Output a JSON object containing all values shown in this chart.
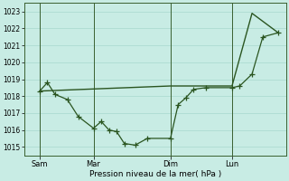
{
  "xlabel": "Pression niveau de la mer( hPa )",
  "bg_color": "#c8ece4",
  "grid_color": "#a8d8ce",
  "line_color": "#2a5520",
  "spine_color": "#3a6030",
  "ylim": [
    1014.5,
    1023.5
  ],
  "yticks": [
    1015,
    1016,
    1017,
    1018,
    1019,
    1020,
    1021,
    1022,
    1023
  ],
  "xlim": [
    0,
    17
  ],
  "xtick_labels": [
    "Sam",
    "Mar",
    "Dim",
    "Lun"
  ],
  "xtick_positions": [
    1,
    4.5,
    9.5,
    13.5
  ],
  "vline_positions": [
    1,
    4.5,
    9.5,
    13.5
  ],
  "series1_x": [
    1.0,
    1.5,
    2.0,
    2.8,
    3.5,
    4.5,
    5.0,
    5.5,
    6.0,
    6.5,
    7.2,
    8.0,
    9.5,
    10.0,
    10.5,
    11.0,
    11.8,
    13.5,
    14.0,
    14.8,
    15.5,
    16.5
  ],
  "series1_y": [
    1018.3,
    1018.8,
    1018.1,
    1017.8,
    1016.8,
    1016.1,
    1016.5,
    1016.0,
    1015.9,
    1015.2,
    1015.1,
    1015.5,
    1015.5,
    1017.5,
    1017.9,
    1018.4,
    1018.5,
    1018.5,
    1018.6,
    1019.3,
    1021.5,
    1021.75
  ],
  "series2_x": [
    1.0,
    9.5,
    13.5,
    14.8,
    16.5
  ],
  "series2_y": [
    1018.3,
    1018.6,
    1018.6,
    1022.9,
    1021.75
  ],
  "marker_series_x": [
    1.0,
    1.5,
    2.0,
    2.8,
    3.5,
    4.5,
    5.0,
    5.5,
    6.0,
    6.5,
    7.2,
    8.0,
    9.5,
    10.0,
    10.5,
    11.0,
    11.8,
    13.5,
    14.0,
    14.8,
    15.5,
    16.5
  ],
  "marker_series_y": [
    1018.3,
    1018.8,
    1018.1,
    1017.8,
    1016.8,
    1016.1,
    1016.5,
    1016.0,
    1015.9,
    1015.2,
    1015.1,
    1015.5,
    1015.5,
    1017.5,
    1017.9,
    1018.4,
    1018.5,
    1018.5,
    1018.6,
    1019.3,
    1021.5,
    1021.75
  ]
}
